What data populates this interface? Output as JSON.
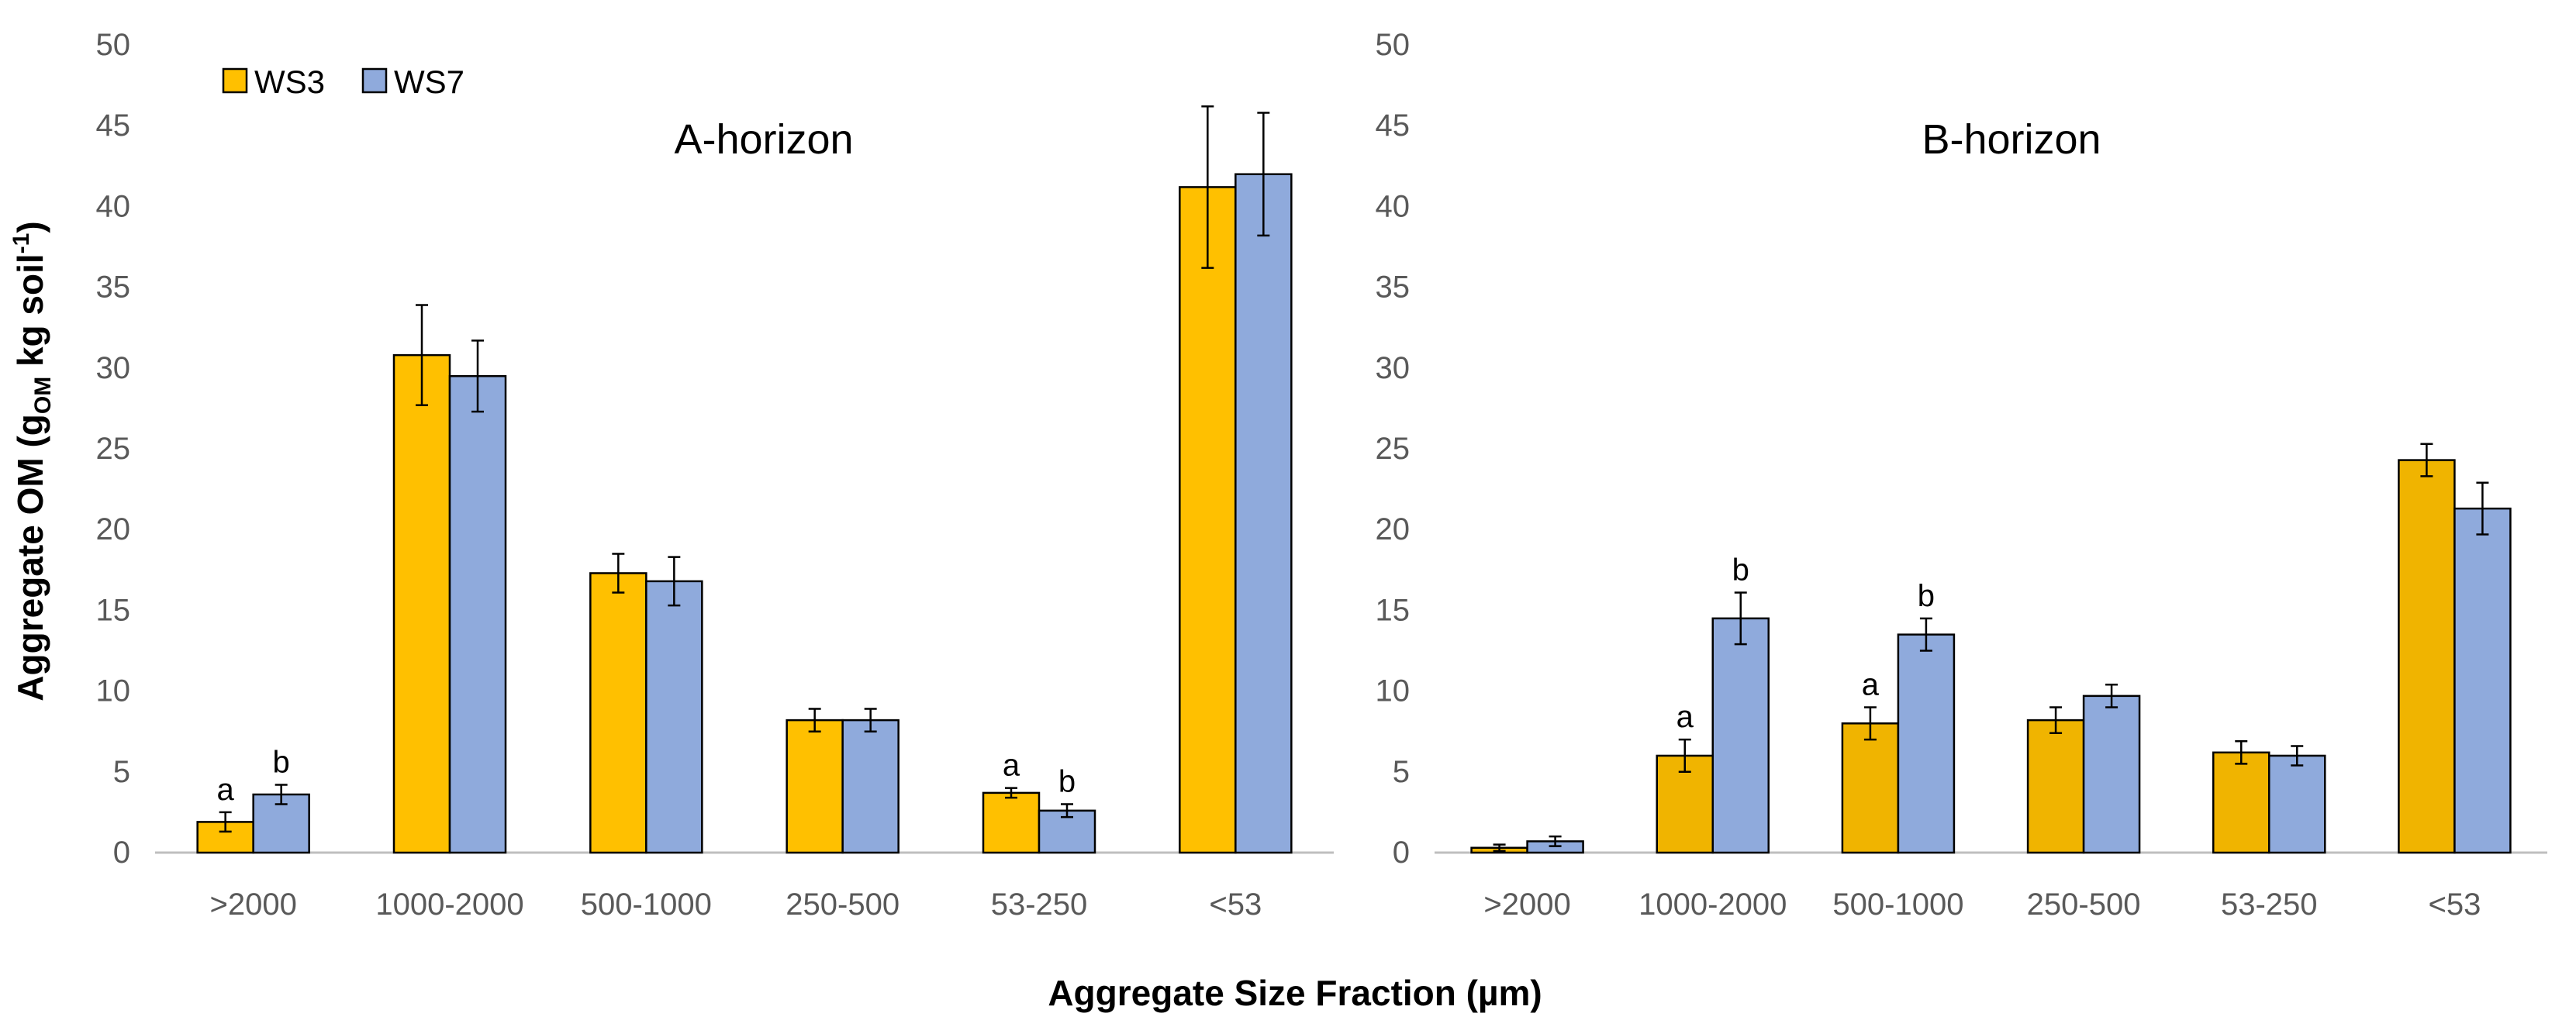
{
  "figure": {
    "ylabel_main": "Aggregate OM (g",
    "ylabel_sub": "OM",
    "ylabel_rest": " kg soil",
    "ylabel_sup": "-1",
    "ylabel_close": ")",
    "xlabel": "Aggregate Size Fraction (µm)",
    "legend": [
      "WS3",
      "WS7"
    ]
  },
  "colors": {
    "ws3_a": "#FFC000",
    "ws3_b": "#F0B400",
    "ws7": "#8FAADC",
    "axis": "#bfbfbf",
    "tick_text": "#595959",
    "text": "#000000"
  },
  "chart_data": [
    {
      "type": "bar",
      "title": "A-horizon",
      "categories": [
        ">2000",
        "1000-2000",
        "500-1000",
        "250-500",
        "53-250",
        "<53"
      ],
      "series": [
        {
          "name": "WS3",
          "values": [
            1.9,
            30.8,
            17.3,
            8.2,
            3.7,
            41.2
          ],
          "errors": [
            0.6,
            3.1,
            1.2,
            0.7,
            0.3,
            5.0
          ]
        },
        {
          "name": "WS7",
          "values": [
            3.6,
            29.5,
            16.8,
            8.2,
            2.6,
            42.0
          ],
          "errors": [
            0.6,
            2.2,
            1.5,
            0.7,
            0.4,
            3.8
          ]
        }
      ],
      "annotations": [
        {
          "series": 0,
          "category": 0,
          "label": "a"
        },
        {
          "series": 1,
          "category": 0,
          "label": "b"
        },
        {
          "series": 0,
          "category": 4,
          "label": "a"
        },
        {
          "series": 1,
          "category": 4,
          "label": "b"
        }
      ],
      "ylim": [
        0,
        50
      ],
      "yticks": [
        0,
        5,
        10,
        15,
        20,
        25,
        30,
        35,
        40,
        45,
        50
      ],
      "legend_position": "top-left"
    },
    {
      "type": "bar",
      "title": "B-horizon",
      "categories": [
        ">2000",
        "1000-2000",
        "500-1000",
        "250-500",
        "53-250",
        "<53"
      ],
      "series": [
        {
          "name": "WS3",
          "values": [
            0.3,
            6.0,
            8.0,
            8.2,
            6.2,
            24.3
          ],
          "errors": [
            0.2,
            1.0,
            1.0,
            0.8,
            0.7,
            1.0
          ]
        },
        {
          "name": "WS7",
          "values": [
            0.7,
            14.5,
            13.5,
            9.7,
            6.0,
            21.3
          ],
          "errors": [
            0.3,
            1.6,
            1.0,
            0.7,
            0.6,
            1.6
          ]
        }
      ],
      "annotations": [
        {
          "series": 0,
          "category": 1,
          "label": "a"
        },
        {
          "series": 1,
          "category": 1,
          "label": "b"
        },
        {
          "series": 0,
          "category": 2,
          "label": "a"
        },
        {
          "series": 1,
          "category": 2,
          "label": "b"
        }
      ],
      "ylim": [
        0,
        50
      ],
      "yticks": [
        0,
        5,
        10,
        15,
        20,
        25,
        30,
        35,
        40,
        45,
        50
      ]
    }
  ]
}
